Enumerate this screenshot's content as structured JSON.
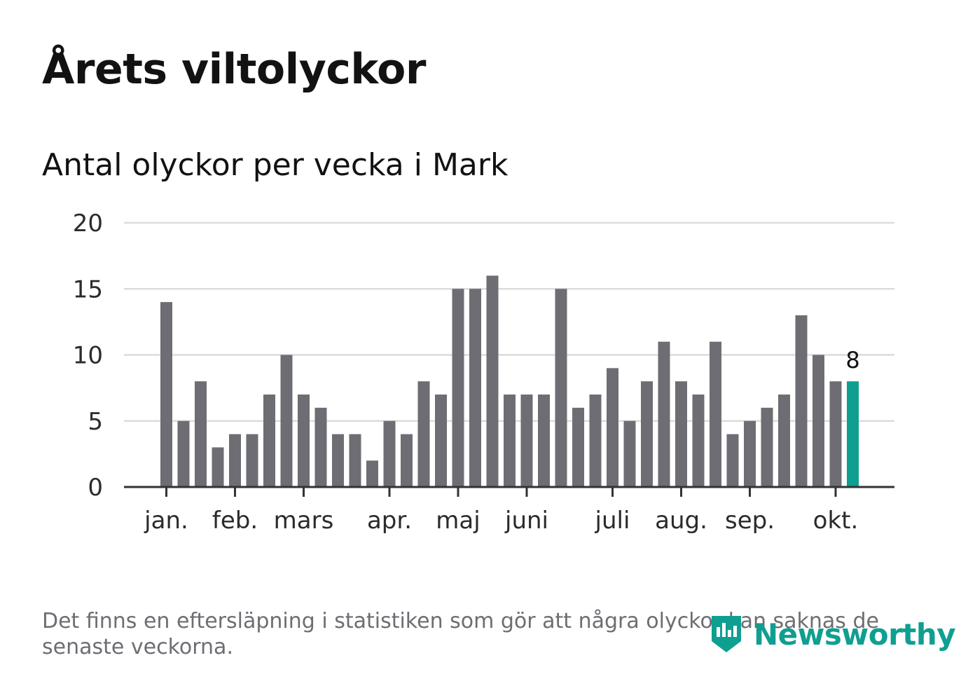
{
  "header": {
    "title": "Årets viltolyckor",
    "subtitle": "Antal olyckor per vecka i Mark"
  },
  "footer": {
    "note": "Det finns en eftersläpning i statistiken som gör att några olyckor kan saknas de senaste veckorna.",
    "brand": "Newsworthy"
  },
  "colors": {
    "bar": "#6e6d73",
    "highlight": "#0f9f91",
    "grid": "#dcdcdc",
    "axis": "#333333",
    "brand": "#0f9f91"
  },
  "chart_data": {
    "type": "bar",
    "title": "Antal olyckor per vecka i Mark",
    "xlabel": "",
    "ylabel": "",
    "ylim": [
      0,
      20
    ],
    "yticks": [
      0,
      5,
      10,
      15,
      20
    ],
    "grid": true,
    "weeks": [
      1,
      2,
      3,
      4,
      5,
      6,
      7,
      8,
      9,
      10,
      11,
      12,
      13,
      14,
      15,
      16,
      17,
      18,
      19,
      20,
      21,
      22,
      23,
      24,
      25,
      26,
      27,
      28,
      29,
      30,
      31,
      32,
      33,
      34,
      35,
      36,
      37,
      38,
      39,
      40,
      41
    ],
    "values": [
      14,
      5,
      8,
      3,
      4,
      4,
      7,
      10,
      7,
      6,
      4,
      4,
      2,
      5,
      4,
      8,
      7,
      15,
      15,
      16,
      7,
      7,
      7,
      15,
      6,
      7,
      9,
      5,
      8,
      11,
      8,
      7,
      11,
      4,
      5,
      6,
      7,
      13,
      10,
      8,
      8
    ],
    "highlight_index": 40,
    "highlight_label": "8",
    "month_ticks": [
      {
        "label": "jan.",
        "week": 1
      },
      {
        "label": "feb.",
        "week": 5
      },
      {
        "label": "mars",
        "week": 9
      },
      {
        "label": "apr.",
        "week": 14
      },
      {
        "label": "maj",
        "week": 18
      },
      {
        "label": "juni",
        "week": 22
      },
      {
        "label": "juli",
        "week": 27
      },
      {
        "label": "aug.",
        "week": 31
      },
      {
        "label": "sep.",
        "week": 35
      },
      {
        "label": "okt.",
        "week": 40
      }
    ]
  }
}
